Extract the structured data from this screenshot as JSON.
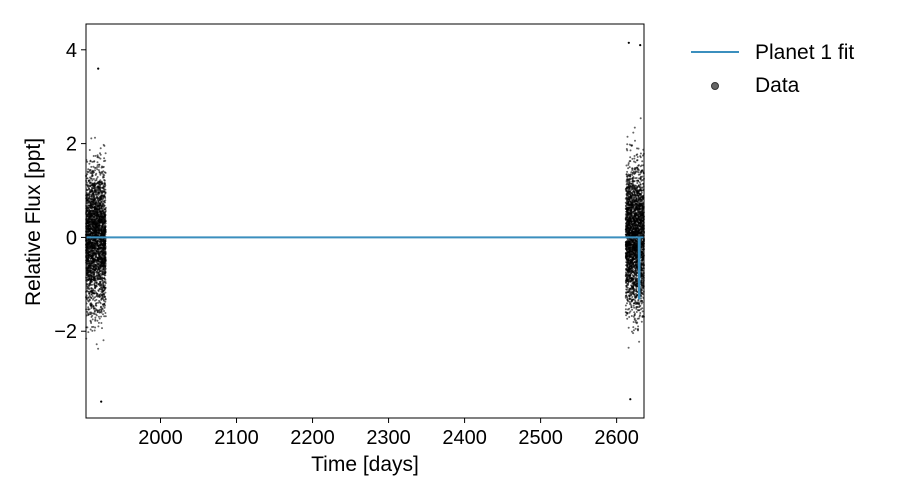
{
  "chart_data": {
    "type": "scatter",
    "xlabel": "Time [days]",
    "ylabel": "Relative Flux [ppt]",
    "xlim": [
      1902,
      2636
    ],
    "ylim": [
      -3.85,
      4.55
    ],
    "x_ticks": [
      2000,
      2100,
      2200,
      2300,
      2400,
      2500,
      2600
    ],
    "x_tick_labels": [
      "2000",
      "2100",
      "2200",
      "2300",
      "2400",
      "2500",
      "2600"
    ],
    "y_ticks": [
      -2,
      0,
      2,
      4
    ],
    "y_tick_labels": [
      "−2",
      "0",
      "2",
      "4"
    ],
    "grid": false,
    "legend_position": "outside-top-right",
    "series": [
      {
        "name": "Data",
        "kind": "scatter",
        "color": "#000000",
        "segments": [
          {
            "x_range": [
              1902,
              1928
            ],
            "y_range": [
              -3.5,
              3.6
            ]
          },
          {
            "x_range": [
              2612,
              2636
            ],
            "y_range": [
              -3.5,
              4.15
            ]
          }
        ],
        "highlighted_points": [
          {
            "x": 2616,
            "y": 4.15
          },
          {
            "x": 2631,
            "y": 4.1
          },
          {
            "x": 1918,
            "y": 3.6
          },
          {
            "x": 1922,
            "y": -3.5
          },
          {
            "x": 2618,
            "y": -3.45
          }
        ]
      },
      {
        "name": "Planet 1 fit",
        "kind": "line",
        "color": "#3b8fbe",
        "points": [
          [
            1902,
            0
          ],
          [
            2629.0,
            0
          ],
          [
            2629.4,
            -1.3
          ],
          [
            2630.0,
            -1.3
          ],
          [
            2630.4,
            0
          ],
          [
            2636,
            0
          ]
        ]
      }
    ]
  }
}
